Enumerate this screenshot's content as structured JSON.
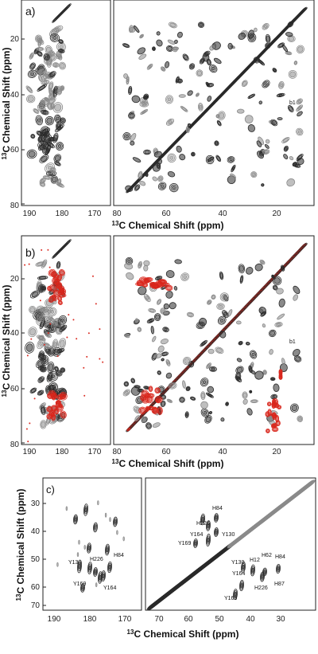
{
  "panels": {
    "a": {
      "label": "a)",
      "xlabel_pre": "13",
      "xlabel_post": "C Chemical Shift (ppm)",
      "ylabel_pre": "13",
      "ylabel_post": "C Chemical Shift (ppm)",
      "left_xticks": [
        "190",
        "180",
        "170",
        "80"
      ],
      "right_xticks": [
        "60",
        "40",
        "20"
      ],
      "yticks": [
        "20",
        "40",
        "60",
        "80"
      ],
      "peak_label": "b1"
    },
    "b": {
      "label": "b)",
      "xlabel_pre": "13",
      "xlabel_post": "C Chemical Shift (ppm)",
      "ylabel_pre": "13",
      "ylabel_post": "C Chemical Shift (ppm)",
      "left_xticks": [
        "190",
        "180",
        "170",
        "80"
      ],
      "right_xticks": [
        "60",
        "40",
        "20"
      ],
      "yticks": [
        "20",
        "40",
        "60",
        "80"
      ],
      "peak_label": "b1"
    },
    "c": {
      "label": "c)",
      "xlabel_pre": "13",
      "xlabel_post": "C Chemical Shift (ppm)",
      "ylabel_pre": "13",
      "ylabel_post": "C Chemical Shift (ppm)",
      "left_xticks": [
        "190",
        "180",
        "170"
      ],
      "right_xticks": [
        "70",
        "60",
        "50",
        "40",
        "30"
      ],
      "yticks": [
        "30",
        "40",
        "50",
        "60",
        "70"
      ],
      "left_annotations": [
        "Y130",
        "H226",
        "H84",
        "Y169",
        "Y164"
      ],
      "right_annotations": [
        "H84",
        "H226",
        "Y164",
        "Y130",
        "Y169",
        "Y130",
        "H12",
        "H62",
        "H84",
        "Y164",
        "H226",
        "H87",
        "Y169"
      ]
    }
  },
  "colors": {
    "contour_black": "#2a2a2a",
    "contour_gray": "#8a8a8a",
    "overlay_red": "#d9261c"
  }
}
